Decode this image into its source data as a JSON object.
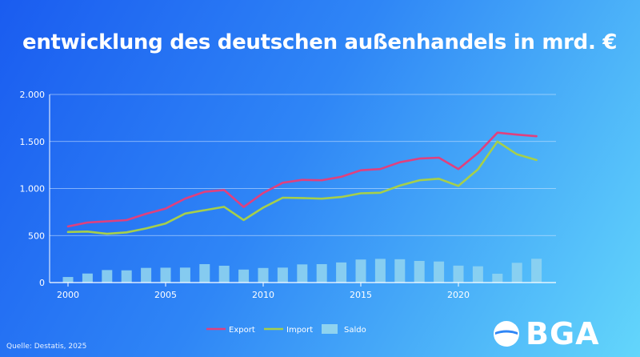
{
  "title": "entwicklung des deutschen außenhandels in mrd. €",
  "source": "Quelle: Destatis, 2025",
  "logo_text": "BGA",
  "colors": {
    "export": "#e0407e",
    "import": "#a6cf4a",
    "saldo": "#8fd3ef",
    "grid": "#cfe6ff"
  },
  "chart_data": {
    "type": "line",
    "title": "entwicklung des deutschen außenhandels in mrd. €",
    "x": [
      2000,
      2001,
      2002,
      2003,
      2004,
      2005,
      2006,
      2007,
      2008,
      2009,
      2010,
      2011,
      2012,
      2013,
      2014,
      2015,
      2016,
      2017,
      2018,
      2019,
      2020,
      2021,
      2022,
      2023,
      2024
    ],
    "ylim": [
      0,
      2000
    ],
    "y_ticks": [
      0,
      500,
      1000,
      1500,
      2000
    ],
    "y_tick_labels": [
      "0",
      "500",
      "1.000",
      "1.500",
      "2.000"
    ],
    "x_ticks": [
      2000,
      2005,
      2010,
      2015,
      2020
    ],
    "x_tick_labels": [
      "2000",
      "2005",
      "2010",
      "2015",
      "2020"
    ],
    "grid": true,
    "legend_position": "bottom",
    "series": [
      {
        "name": "Export",
        "type": "line",
        "values": [
          597,
          638,
          651,
          664,
          731,
          786,
          893,
          965,
          984,
          803,
          952,
          1061,
          1092,
          1088,
          1124,
          1194,
          1207,
          1279,
          1318,
          1328,
          1207,
          1376,
          1594,
          1573,
          1556
        ]
      },
      {
        "name": "Import",
        "type": "line",
        "values": [
          538,
          542,
          518,
          534,
          575,
          628,
          734,
          769,
          805,
          665,
          797,
          902,
          899,
          892,
          910,
          949,
          955,
          1031,
          1088,
          1104,
          1027,
          1203,
          1500,
          1363,
          1303
        ]
      },
      {
        "name": "Saldo",
        "type": "bar",
        "values": [
          59,
          96,
          133,
          130,
          156,
          158,
          159,
          196,
          179,
          138,
          155,
          159,
          193,
          196,
          214,
          245,
          252,
          248,
          230,
          224,
          180,
          173,
          94,
          210,
          253
        ]
      }
    ]
  }
}
